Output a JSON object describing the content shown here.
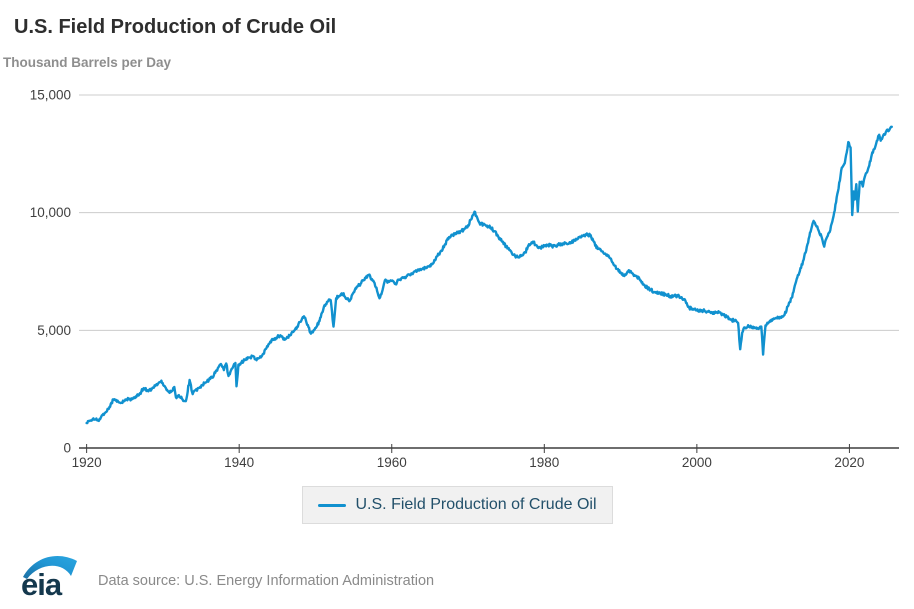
{
  "header": {
    "title": "U.S. Field Production of Crude Oil",
    "subtitle": "Thousand Barrels per Day"
  },
  "legend": {
    "label": "U.S. Field Production of Crude Oil",
    "swatch_color": "#1191cf"
  },
  "footer": {
    "logo_text": "eia",
    "source_text": "Data source: U.S. Energy Information Administration"
  },
  "colors": {
    "line": "#1191cf",
    "grid": "#cccccc",
    "axis": "#3f3f3f",
    "tick_label": "#3f3f3f",
    "title_text": "#2e2e2e",
    "subtitle_text": "#8e8e8e",
    "legend_text": "#22506a",
    "legend_bg": "#f1f1f1",
    "logo_navy": "#14384d",
    "logo_swoosh": "#2196d4"
  },
  "chart_data": {
    "type": "line",
    "title": "U.S. Field Production of Crude Oil",
    "ylabel": "Thousand Barrels per Day",
    "xlabel": "",
    "unit": "thousand barrels per day (monthly)",
    "xlim": [
      1919,
      2026.5
    ],
    "ylim": [
      0,
      15000
    ],
    "grid": "horizontal",
    "legend_position": "bottom",
    "xticks": [
      {
        "value": 1920,
        "label": "1920"
      },
      {
        "value": 1940,
        "label": "1940"
      },
      {
        "value": 1960,
        "label": "1960"
      },
      {
        "value": 1980,
        "label": "1980"
      },
      {
        "value": 2000,
        "label": "2000"
      },
      {
        "value": 2020,
        "label": "2020"
      }
    ],
    "yticks": [
      {
        "value": 0,
        "label": "0"
      },
      {
        "value": 5000,
        "label": "5,000"
      },
      {
        "value": 10000,
        "label": "10,000"
      },
      {
        "value": 15000,
        "label": "15,000"
      }
    ],
    "jitter_amplitude": 65,
    "series": [
      {
        "name": "U.S. Field Production of Crude Oil",
        "color": "#1191cf",
        "points": [
          [
            1920,
            1060
          ],
          [
            1920.4,
            1150
          ],
          [
            1920.8,
            1230
          ],
          [
            1921.2,
            1210
          ],
          [
            1921.6,
            1150
          ],
          [
            1922,
            1390
          ],
          [
            1922.5,
            1520
          ],
          [
            1923,
            1750
          ],
          [
            1923.5,
            2070
          ],
          [
            1923.8,
            2020
          ],
          [
            1924.2,
            1940
          ],
          [
            1924.6,
            1930
          ],
          [
            1925,
            2010
          ],
          [
            1925.5,
            2090
          ],
          [
            1926,
            2080
          ],
          [
            1926.5,
            2160
          ],
          [
            1927,
            2330
          ],
          [
            1927.5,
            2540
          ],
          [
            1928,
            2450
          ],
          [
            1928.5,
            2490
          ],
          [
            1929,
            2640
          ],
          [
            1929.8,
            2860
          ],
          [
            1930.3,
            2590
          ],
          [
            1930.8,
            2370
          ],
          [
            1931.2,
            2420
          ],
          [
            1931.5,
            2590
          ],
          [
            1931.7,
            2160
          ],
          [
            1932,
            2230
          ],
          [
            1932.5,
            2090
          ],
          [
            1933,
            1990
          ],
          [
            1933.5,
            2890
          ],
          [
            1933.9,
            2290
          ],
          [
            1934.3,
            2460
          ],
          [
            1934.8,
            2560
          ],
          [
            1935.2,
            2680
          ],
          [
            1935.7,
            2800
          ],
          [
            1936.2,
            2930
          ],
          [
            1936.7,
            3110
          ],
          [
            1937.2,
            3390
          ],
          [
            1937.6,
            3570
          ],
          [
            1938,
            3310
          ],
          [
            1938.3,
            3590
          ],
          [
            1938.6,
            3060
          ],
          [
            1939,
            3360
          ],
          [
            1939.5,
            3610
          ],
          [
            1939.65,
            2620
          ],
          [
            1939.9,
            3540
          ],
          [
            1940.3,
            3650
          ],
          [
            1940.8,
            3740
          ],
          [
            1941.3,
            3840
          ],
          [
            1941.8,
            3910
          ],
          [
            1942.2,
            3760
          ],
          [
            1942.6,
            3820
          ],
          [
            1943,
            3920
          ],
          [
            1943.5,
            4210
          ],
          [
            1944,
            4460
          ],
          [
            1944.5,
            4630
          ],
          [
            1945,
            4710
          ],
          [
            1945.4,
            4790
          ],
          [
            1945.8,
            4610
          ],
          [
            1946.2,
            4660
          ],
          [
            1946.7,
            4800
          ],
          [
            1947.1,
            4930
          ],
          [
            1947.6,
            5160
          ],
          [
            1948,
            5360
          ],
          [
            1948.5,
            5590
          ],
          [
            1949,
            5230
          ],
          [
            1949.4,
            4860
          ],
          [
            1949.8,
            5020
          ],
          [
            1950.2,
            5180
          ],
          [
            1950.7,
            5560
          ],
          [
            1951.1,
            6000
          ],
          [
            1951.6,
            6220
          ],
          [
            1952,
            6280
          ],
          [
            1952.37,
            5160
          ],
          [
            1952.7,
            6360
          ],
          [
            1953.1,
            6460
          ],
          [
            1953.6,
            6560
          ],
          [
            1954,
            6340
          ],
          [
            1954.5,
            6260
          ],
          [
            1955,
            6610
          ],
          [
            1955.5,
            6860
          ],
          [
            1956,
            7010
          ],
          [
            1956.5,
            7230
          ],
          [
            1957,
            7360
          ],
          [
            1957.5,
            7110
          ],
          [
            1958,
            6810
          ],
          [
            1958.4,
            6360
          ],
          [
            1958.8,
            6720
          ],
          [
            1959.1,
            7120
          ],
          [
            1959.6,
            7060
          ],
          [
            1960,
            7100
          ],
          [
            1960.5,
            6990
          ],
          [
            1961,
            7160
          ],
          [
            1961.5,
            7230
          ],
          [
            1962,
            7310
          ],
          [
            1962.5,
            7360
          ],
          [
            1963,
            7510
          ],
          [
            1963.5,
            7590
          ],
          [
            1964,
            7610
          ],
          [
            1964.5,
            7650
          ],
          [
            1965,
            7760
          ],
          [
            1965.5,
            7880
          ],
          [
            1966,
            8160
          ],
          [
            1966.5,
            8390
          ],
          [
            1967,
            8660
          ],
          [
            1967.5,
            8960
          ],
          [
            1968,
            9060
          ],
          [
            1968.5,
            9140
          ],
          [
            1969,
            9210
          ],
          [
            1969.5,
            9290
          ],
          [
            1970,
            9460
          ],
          [
            1970.4,
            9710
          ],
          [
            1970.85,
            10040
          ],
          [
            1971.1,
            9860
          ],
          [
            1971.5,
            9560
          ],
          [
            1972,
            9490
          ],
          [
            1972.5,
            9450
          ],
          [
            1973,
            9360
          ],
          [
            1973.5,
            9210
          ],
          [
            1974,
            8960
          ],
          [
            1974.5,
            8760
          ],
          [
            1975,
            8560
          ],
          [
            1975.5,
            8410
          ],
          [
            1976,
            8210
          ],
          [
            1976.5,
            8110
          ],
          [
            1977,
            8160
          ],
          [
            1977.5,
            8310
          ],
          [
            1978,
            8660
          ],
          [
            1978.5,
            8760
          ],
          [
            1979,
            8610
          ],
          [
            1979.5,
            8510
          ],
          [
            1980,
            8610
          ],
          [
            1980.5,
            8630
          ],
          [
            1981,
            8580
          ],
          [
            1981.5,
            8590
          ],
          [
            1982,
            8660
          ],
          [
            1982.5,
            8690
          ],
          [
            1983,
            8660
          ],
          [
            1983.5,
            8740
          ],
          [
            1984,
            8810
          ],
          [
            1984.5,
            8960
          ],
          [
            1985,
            9010
          ],
          [
            1985.5,
            9060
          ],
          [
            1986,
            9060
          ],
          [
            1986.5,
            8760
          ],
          [
            1987,
            8460
          ],
          [
            1987.5,
            8360
          ],
          [
            1988,
            8260
          ],
          [
            1988.5,
            8110
          ],
          [
            1989,
            7860
          ],
          [
            1989.5,
            7610
          ],
          [
            1990,
            7460
          ],
          [
            1990.5,
            7310
          ],
          [
            1991,
            7510
          ],
          [
            1991.5,
            7430
          ],
          [
            1992,
            7310
          ],
          [
            1992.5,
            7160
          ],
          [
            1993,
            6960
          ],
          [
            1993.5,
            6810
          ],
          [
            1994,
            6710
          ],
          [
            1994.5,
            6630
          ],
          [
            1995,
            6590
          ],
          [
            1995.5,
            6550
          ],
          [
            1996,
            6510
          ],
          [
            1996.5,
            6460
          ],
          [
            1997,
            6460
          ],
          [
            1997.5,
            6450
          ],
          [
            1998,
            6410
          ],
          [
            1998.5,
            6260
          ],
          [
            1999,
            5960
          ],
          [
            1999.5,
            5910
          ],
          [
            2000,
            5860
          ],
          [
            2000.5,
            5810
          ],
          [
            2001,
            5840
          ],
          [
            2001.5,
            5790
          ],
          [
            2002,
            5760
          ],
          [
            2002.5,
            5750
          ],
          [
            2003,
            5760
          ],
          [
            2003.5,
            5660
          ],
          [
            2004,
            5560
          ],
          [
            2004.5,
            5440
          ],
          [
            2005,
            5410
          ],
          [
            2005.4,
            5310
          ],
          [
            2005.68,
            4200
          ],
          [
            2005.95,
            4900
          ],
          [
            2006.3,
            5120
          ],
          [
            2006.8,
            5160
          ],
          [
            2007.2,
            5110
          ],
          [
            2007.7,
            5090
          ],
          [
            2008.1,
            5060
          ],
          [
            2008.45,
            5160
          ],
          [
            2008.68,
            3970
          ],
          [
            2009,
            5210
          ],
          [
            2009.5,
            5360
          ],
          [
            2010,
            5460
          ],
          [
            2010.5,
            5510
          ],
          [
            2011,
            5560
          ],
          [
            2011.5,
            5660
          ],
          [
            2012,
            6060
          ],
          [
            2012.5,
            6410
          ],
          [
            2013,
            7060
          ],
          [
            2013.5,
            7510
          ],
          [
            2014,
            8010
          ],
          [
            2014.5,
            8660
          ],
          [
            2015,
            9310
          ],
          [
            2015.3,
            9650
          ],
          [
            2015.7,
            9410
          ],
          [
            2016,
            9210
          ],
          [
            2016.4,
            8910
          ],
          [
            2016.7,
            8560
          ],
          [
            2017,
            8910
          ],
          [
            2017.5,
            9260
          ],
          [
            2018,
            10010
          ],
          [
            2018.5,
            10910
          ],
          [
            2019,
            11910
          ],
          [
            2019.4,
            12110
          ],
          [
            2019.85,
            13000
          ],
          [
            2020.15,
            12760
          ],
          [
            2020.37,
            9900
          ],
          [
            2020.55,
            10900
          ],
          [
            2020.7,
            10560
          ],
          [
            2020.9,
            11210
          ],
          [
            2021.1,
            10050
          ],
          [
            2021.35,
            11310
          ],
          [
            2021.6,
            11310
          ],
          [
            2021.75,
            11110
          ],
          [
            2022,
            11510
          ],
          [
            2022.3,
            11710
          ],
          [
            2022.6,
            12010
          ],
          [
            2023,
            12560
          ],
          [
            2023.3,
            12710
          ],
          [
            2023.6,
            13060
          ],
          [
            2023.9,
            13310
          ],
          [
            2024.1,
            13060
          ],
          [
            2024.35,
            13210
          ],
          [
            2024.6,
            13310
          ],
          [
            2024.9,
            13510
          ],
          [
            2025.1,
            13460
          ],
          [
            2025.3,
            13560
          ],
          [
            2025.55,
            13650
          ]
        ]
      }
    ]
  }
}
